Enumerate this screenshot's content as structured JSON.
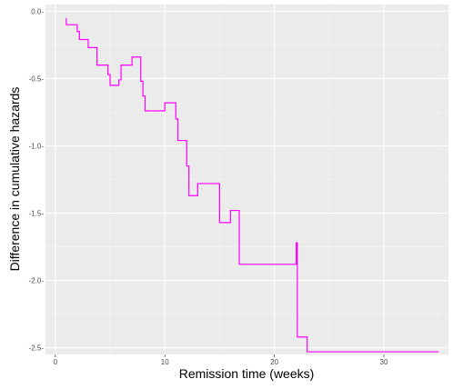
{
  "chart_data": {
    "type": "line",
    "line_style": "step",
    "xlabel": "Remission time (weeks)",
    "ylabel": "Difference in cumulative hazards",
    "xlim": [
      -0.9,
      35.9
    ],
    "ylim": [
      -2.55,
      0.05
    ],
    "x_ticks": [
      0,
      10,
      20,
      30
    ],
    "y_ticks": [
      0.0,
      -0.5,
      -1.0,
      -1.5,
      -2.0,
      -2.5
    ],
    "y_tick_labels": [
      "0.0-",
      "-0.5-",
      "-1.0-",
      "-1.5-",
      "-2.0-",
      "-2.5-"
    ],
    "grid": true,
    "series": [
      {
        "color": "#ff00ff",
        "points": [
          [
            1,
            -0.05
          ],
          [
            1,
            -0.1
          ],
          [
            2,
            -0.1
          ],
          [
            2,
            -0.15
          ],
          [
            2.2,
            -0.15
          ],
          [
            2.2,
            -0.21
          ],
          [
            3,
            -0.21
          ],
          [
            3,
            -0.27
          ],
          [
            3.8,
            -0.27
          ],
          [
            3.8,
            -0.4
          ],
          [
            4.8,
            -0.4
          ],
          [
            4.8,
            -0.47
          ],
          [
            5,
            -0.47
          ],
          [
            5,
            -0.55
          ],
          [
            5.8,
            -0.55
          ],
          [
            5.8,
            -0.51
          ],
          [
            6,
            -0.51
          ],
          [
            6,
            -0.4
          ],
          [
            7,
            -0.4
          ],
          [
            7,
            -0.34
          ],
          [
            7.8,
            -0.34
          ],
          [
            7.8,
            -0.52
          ],
          [
            8,
            -0.52
          ],
          [
            8,
            -0.63
          ],
          [
            8.2,
            -0.63
          ],
          [
            8.2,
            -0.74
          ],
          [
            10,
            -0.74
          ],
          [
            10,
            -0.68
          ],
          [
            11,
            -0.68
          ],
          [
            11,
            -0.8
          ],
          [
            11.2,
            -0.8
          ],
          [
            11.2,
            -0.96
          ],
          [
            12,
            -0.96
          ],
          [
            12,
            -1.15
          ],
          [
            12.2,
            -1.15
          ],
          [
            12.2,
            -1.37
          ],
          [
            13,
            -1.37
          ],
          [
            13,
            -1.28
          ],
          [
            15,
            -1.28
          ],
          [
            15,
            -1.57
          ],
          [
            16,
            -1.57
          ],
          [
            16,
            -1.48
          ],
          [
            16.8,
            -1.48
          ],
          [
            16.8,
            -1.88
          ],
          [
            22,
            -1.88
          ],
          [
            22,
            -1.72
          ],
          [
            22.1,
            -1.72
          ],
          [
            22.1,
            -2.42
          ],
          [
            23,
            -2.42
          ],
          [
            23,
            -2.53
          ],
          [
            35,
            -2.53
          ]
        ]
      }
    ]
  }
}
